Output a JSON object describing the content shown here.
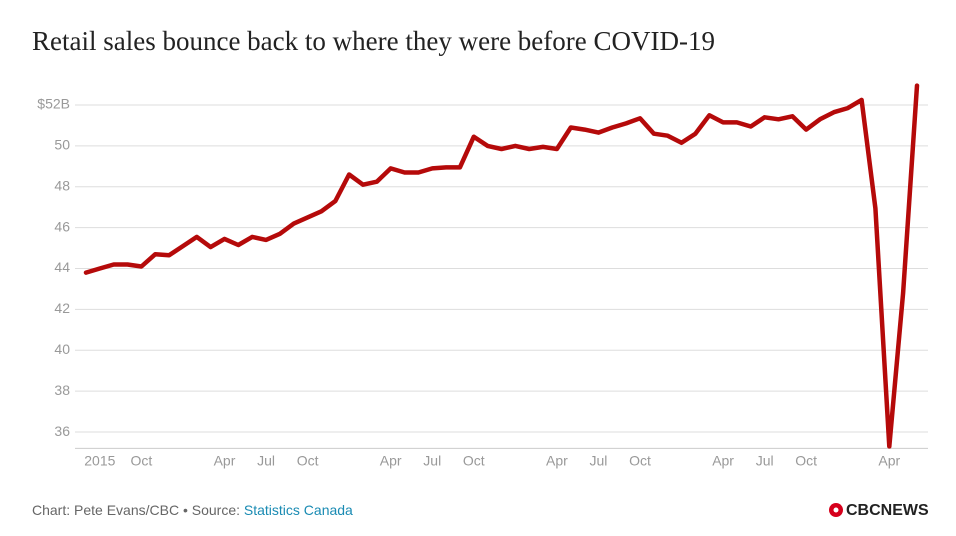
{
  "chart_data": {
    "type": "line",
    "title": "Retail sales bounce back to where they were before COVID-19",
    "categories": [
      null,
      "2015",
      null,
      null,
      "Oct",
      null,
      null,
      null,
      null,
      null,
      "Apr",
      null,
      null,
      "Jul",
      null,
      null,
      "Oct",
      null,
      null,
      null,
      null,
      null,
      "Apr",
      null,
      null,
      "Jul",
      null,
      null,
      "Oct",
      null,
      null,
      null,
      null,
      null,
      "Apr",
      null,
      null,
      "Jul",
      null,
      null,
      "Oct",
      null,
      null,
      null,
      null,
      null,
      "Apr",
      null,
      null,
      "Jul",
      null,
      null,
      "Oct",
      null,
      null,
      null,
      null,
      null,
      "Apr",
      null,
      null
    ],
    "series": [
      {
        "name": "Retail sales",
        "color": "#b50a0a",
        "values": [
          43.8,
          44.0,
          44.2,
          44.2,
          44.1,
          44.7,
          44.65,
          45.1,
          45.55,
          45.05,
          45.45,
          45.15,
          45.55,
          45.4,
          45.7,
          46.2,
          46.5,
          46.8,
          47.3,
          48.6,
          48.1,
          48.25,
          48.9,
          48.7,
          48.7,
          48.9,
          48.95,
          48.95,
          50.45,
          50.0,
          49.85,
          50.0,
          49.85,
          49.95,
          49.85,
          50.9,
          50.8,
          50.65,
          50.9,
          51.1,
          51.35,
          50.6,
          50.5,
          50.15,
          50.6,
          51.5,
          51.15,
          51.15,
          50.95,
          51.4,
          51.3,
          51.45,
          50.8,
          51.3,
          51.65,
          51.85,
          52.25,
          46.95,
          35.3,
          42.8,
          52.95
        ]
      }
    ],
    "ylim": [
      35.2,
      53.0
    ],
    "yticks": [
      36,
      38,
      40,
      42,
      44,
      46,
      48,
      50,
      {
        "value": 52,
        "label": "$52B"
      }
    ],
    "grid": true,
    "source_prefix": "Chart: Pete Evans/CBC • Source: ",
    "source_link": "Statistics Canada",
    "logo": "CBCNEWS"
  }
}
